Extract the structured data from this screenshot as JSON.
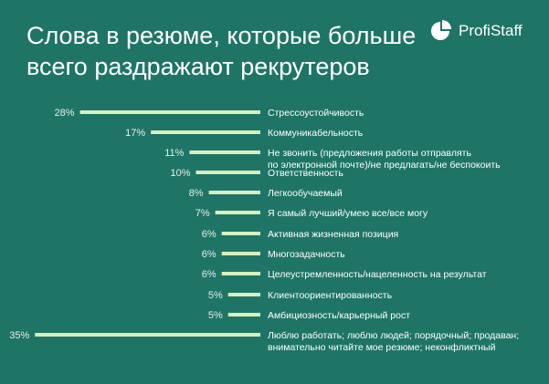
{
  "page": {
    "title_line1": "Слова в резюме, которые больше",
    "title_line2": "всего раздражают рекрутеров"
  },
  "brand": {
    "name": "ProfiStaff",
    "icon": "pie-chart-logo-icon"
  },
  "colors": {
    "background": "#1f7565",
    "bar": "#d8f0c0",
    "text": "#ffffff"
  },
  "chart_data": {
    "type": "bar",
    "orientation": "horizontal",
    "unit": "%",
    "categories": [
      [
        "Стрессоустойчивость"
      ],
      [
        "Коммуникабельность"
      ],
      [
        "Не звонить (предложения работы отправлять",
        "по электронной почте)/не предлагать/не беспокоить"
      ],
      [
        "Ответственность"
      ],
      [
        "Легкообучаемый"
      ],
      [
        "Я самый лучший/умею все/все могу"
      ],
      [
        "Активная жизненная позиция"
      ],
      [
        "Многозадачность"
      ],
      [
        "Целеустремленность/нацеленность на результат"
      ],
      [
        "Клиентоориентированность"
      ],
      [
        "Амбициозность/карьерный рост"
      ],
      [
        "Люблю работать; люблю людей; порядочный; продаван;",
        "внимательно читайте мое резюме; неконфликтный"
      ]
    ],
    "values": [
      28,
      17,
      11,
      10,
      8,
      7,
      6,
      6,
      6,
      5,
      5,
      35
    ],
    "value_labels": [
      "28%",
      "17%",
      "11%",
      "10%",
      "8%",
      "7%",
      "6%",
      "6%",
      "6%",
      "5%",
      "5%",
      "35%"
    ]
  }
}
